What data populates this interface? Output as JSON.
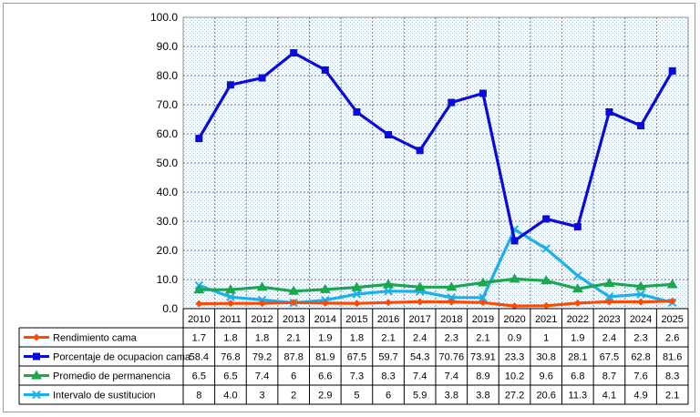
{
  "chart_data": {
    "type": "line",
    "categories": [
      "2010",
      "2011",
      "2012",
      "2013",
      "2014",
      "2015",
      "2016",
      "2017",
      "2018",
      "2019",
      "2020",
      "2021",
      "2022",
      "2023",
      "2024",
      "2025"
    ],
    "ylim": [
      0,
      100
    ],
    "yticks": [
      "0.0",
      "10.0",
      "20.0",
      "30.0",
      "40.0",
      "50.0",
      "60.0",
      "70.0",
      "80.0",
      "90.0",
      "100.0"
    ],
    "grid": true,
    "legend_placement": "data-table-left",
    "series": [
      {
        "name": "Rendimiento cama",
        "color": "#ff4a00",
        "marker": "diamond",
        "values": [
          1.7,
          1.8,
          1.8,
          2.1,
          1.9,
          1.8,
          2.1,
          2.4,
          2.3,
          2.1,
          0.9,
          1,
          1.9,
          2.4,
          2.3,
          2.6
        ],
        "labels": [
          "1.7",
          "1.8",
          "1.8",
          "2.1",
          "1.9",
          "1.8",
          "2.1",
          "2.4",
          "2.3",
          "2.1",
          "0.9",
          "1",
          "1.9",
          "2.4",
          "2.3",
          "2.6"
        ]
      },
      {
        "name": "Porcentaje de ocupacion cama",
        "color": "#0a0adc",
        "marker": "square",
        "values": [
          58.4,
          76.8,
          79.2,
          87.8,
          81.9,
          67.5,
          59.7,
          54.3,
          70.76,
          73.91,
          23.3,
          30.8,
          28.1,
          67.5,
          62.8,
          81.6
        ],
        "labels": [
          "58.4",
          "76.8",
          "79.2",
          "87.8",
          "81.9",
          "67.5",
          "59.7",
          "54.3",
          "70.76",
          "73.91",
          "23.3",
          "30.8",
          "28.1",
          "67.5",
          "62.8",
          "81.6"
        ]
      },
      {
        "name": "Promedio de permanencia",
        "color": "#1aa84a",
        "marker": "triangle",
        "values": [
          6.5,
          6.5,
          7.4,
          6,
          6.6,
          7.3,
          8.3,
          7.4,
          7.4,
          8.9,
          10.2,
          9.6,
          6.8,
          8.7,
          7.6,
          8.3
        ],
        "labels": [
          "6.5",
          "6.5",
          "7.4",
          "6",
          "6.6",
          "7.3",
          "8.3",
          "7.4",
          "7.4",
          "8.9",
          "10.2",
          "9.6",
          "6.8",
          "8.7",
          "7.6",
          "8.3"
        ]
      },
      {
        "name": "Intervalo de sustitucion",
        "color": "#1ab0ec",
        "marker": "x",
        "values": [
          8,
          4.0,
          3,
          2,
          2.9,
          5,
          6,
          5.9,
          3.8,
          3.8,
          27.2,
          20.6,
          11.3,
          4.1,
          4.9,
          2.1
        ],
        "labels": [
          "8",
          "4.0",
          "3",
          "2",
          "2.9",
          "5",
          "6",
          "5.9",
          "3.8",
          "3.8",
          "27.2",
          "20.6",
          "11.3",
          "4.1",
          "4.9",
          "2.1"
        ]
      }
    ]
  }
}
